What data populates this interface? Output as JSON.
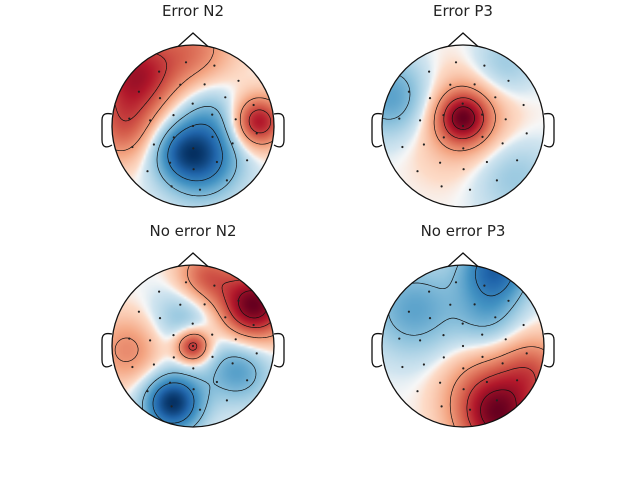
{
  "chart_data": [
    {
      "type": "heatmap",
      "title": "Error N2",
      "colormap": "RdBu_r",
      "sensors": 32,
      "blobs": [
        {
          "u": -0.72,
          "v": -0.62,
          "s": 0.36,
          "a": 1.0
        },
        {
          "u": 0.8,
          "v": -0.05,
          "s": 0.22,
          "a": 1.05
        },
        {
          "u": -0.85,
          "v": 0.05,
          "s": 0.3,
          "a": 0.55
        },
        {
          "u": 0.0,
          "v": -0.95,
          "s": 0.35,
          "a": 0.5
        },
        {
          "u": 0.1,
          "v": 0.4,
          "s": 0.33,
          "a": -1.0
        },
        {
          "u": -0.2,
          "v": 0.3,
          "s": 0.25,
          "a": -0.45
        },
        {
          "u": 0.2,
          "v": -0.15,
          "s": 0.28,
          "a": -0.35
        }
      ]
    },
    {
      "type": "heatmap",
      "title": "Error P3",
      "colormap": "RdBu_r",
      "sensors": 32,
      "blobs": [
        {
          "u": 0.0,
          "v": -0.1,
          "s": 0.22,
          "a": 1.0
        },
        {
          "u": 0.0,
          "v": -0.1,
          "s": 0.45,
          "a": 0.45
        },
        {
          "u": -0.85,
          "v": -0.35,
          "s": 0.35,
          "a": -0.65
        },
        {
          "u": 0.6,
          "v": 0.6,
          "s": 0.35,
          "a": -0.35
        },
        {
          "u": 0.5,
          "v": -0.75,
          "s": 0.3,
          "a": -0.35
        }
      ]
    },
    {
      "type": "heatmap",
      "title": "No error N2",
      "colormap": "RdBu_r",
      "sensors": 32,
      "blobs": [
        {
          "u": 0.75,
          "v": -0.5,
          "s": 0.3,
          "a": 1.0
        },
        {
          "u": 0.15,
          "v": -0.85,
          "s": 0.25,
          "a": 0.5
        },
        {
          "u": 0.0,
          "v": 0.0,
          "s": 0.15,
          "a": 0.8
        },
        {
          "u": -0.8,
          "v": 0.05,
          "s": 0.3,
          "a": 0.35
        },
        {
          "u": -0.25,
          "v": 0.7,
          "s": 0.25,
          "a": -1.0
        },
        {
          "u": 0.55,
          "v": 0.3,
          "s": 0.28,
          "a": -0.45
        },
        {
          "u": -0.1,
          "v": -0.35,
          "s": 0.28,
          "a": -0.3
        }
      ]
    },
    {
      "type": "heatmap",
      "title": "No error P3",
      "colormap": "RdBu_r",
      "sensors": 32,
      "blobs": [
        {
          "u": 0.45,
          "v": 0.9,
          "s": 0.35,
          "a": 1.0
        },
        {
          "u": 0.85,
          "v": 0.3,
          "s": 0.3,
          "a": 0.55
        },
        {
          "u": 0.2,
          "v": 0.5,
          "s": 0.35,
          "a": 0.35
        },
        {
          "u": 0.4,
          "v": -0.95,
          "s": 0.3,
          "a": -0.9
        },
        {
          "u": -0.6,
          "v": -0.45,
          "s": 0.4,
          "a": -0.5
        },
        {
          "u": 0.3,
          "v": -0.35,
          "s": 0.28,
          "a": -0.35
        }
      ]
    }
  ]
}
